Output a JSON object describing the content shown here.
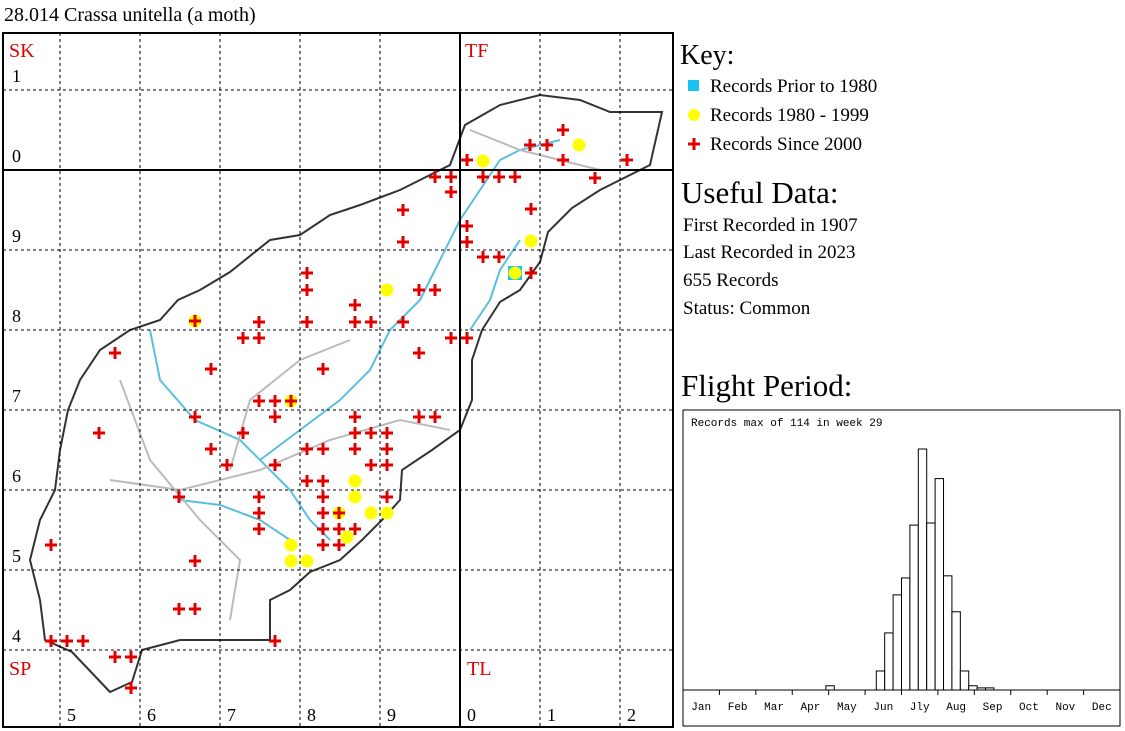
{
  "title": "28.014 Crassa unitella (a moth)",
  "map": {
    "square_labels": [
      "SK",
      "TF",
      "SP",
      "TL"
    ],
    "row_labels": [
      "1",
      "0",
      "9",
      "8",
      "7",
      "6",
      "5",
      "4"
    ],
    "col_labels": [
      "5",
      "6",
      "7",
      "8",
      "9",
      "0",
      "1",
      "2"
    ]
  },
  "key": {
    "title": "Key:",
    "items": [
      "Records Prior to 1980",
      "Records 1980 - 1999",
      "Records Since 2000"
    ]
  },
  "useful_data": {
    "title": "Useful Data:",
    "lines": [
      "First Recorded in 1907",
      "Last Recorded in 2023",
      "655 Records",
      "Status: Common"
    ]
  },
  "flight_period_title": "Flight Period:",
  "chart_data": {
    "type": "histogram",
    "title": "Records max of 114 in week 29",
    "x_labels": [
      "Jan",
      "Feb",
      "Mar",
      "Apr",
      "May",
      "Jun",
      "Jly",
      "Aug",
      "Sep",
      "Oct",
      "Nov",
      "Dec"
    ],
    "values": [
      0,
      0,
      0,
      0,
      0,
      0,
      0,
      0,
      0,
      0,
      0,
      0,
      0,
      0,
      0,
      0,
      0,
      2,
      0,
      0,
      0,
      0,
      0,
      9,
      27,
      45,
      53,
      78,
      114,
      79,
      100,
      54,
      37,
      9,
      2,
      1,
      1,
      0,
      0,
      0,
      0,
      0,
      0,
      0,
      0,
      0,
      0,
      0,
      0,
      0,
      0,
      0
    ],
    "color": "#ffffff"
  }
}
